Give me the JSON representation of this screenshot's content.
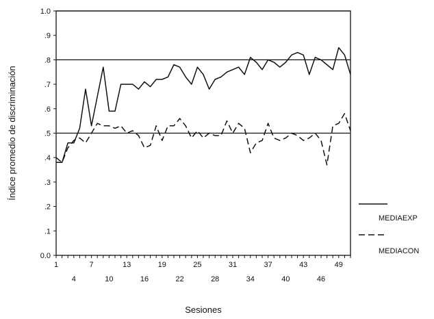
{
  "chart_data": {
    "type": "line",
    "title": "",
    "xlabel": "Sesiones",
    "ylabel": "Índice promedio de discriminación",
    "ylim": [
      0,
      1.0
    ],
    "xlim": [
      1,
      51
    ],
    "y_ticks": [
      "0.0",
      ".1",
      ".2",
      ".3",
      ".4",
      ".5",
      ".6",
      ".7",
      ".8",
      ".9",
      "1.0"
    ],
    "x_ticks_row1": [
      "1",
      "7",
      "13",
      "19",
      "25",
      "31",
      "37",
      "43",
      "49"
    ],
    "x_ticks_row2": [
      "4",
      "10",
      "16",
      "22",
      "28",
      "34",
      "40",
      "46"
    ],
    "reference_lines": [
      0.5,
      0.8,
      1.0
    ],
    "legend_position": "right",
    "series": [
      {
        "name": "MEDIAEXP",
        "style": "solid",
        "x": [
          1,
          2,
          3,
          4,
          5,
          6,
          7,
          8,
          9,
          10,
          11,
          12,
          13,
          14,
          15,
          16,
          17,
          18,
          19,
          20,
          21,
          22,
          23,
          24,
          25,
          26,
          27,
          28,
          29,
          30,
          31,
          32,
          33,
          34,
          35,
          36,
          37,
          38,
          39,
          40,
          41,
          42,
          43,
          44,
          45,
          46,
          47,
          48,
          49,
          50,
          51
        ],
        "values": [
          0.38,
          0.38,
          0.46,
          0.46,
          0.52,
          0.68,
          0.53,
          0.65,
          0.77,
          0.59,
          0.59,
          0.7,
          0.7,
          0.7,
          0.68,
          0.71,
          0.69,
          0.72,
          0.72,
          0.73,
          0.78,
          0.77,
          0.73,
          0.7,
          0.77,
          0.74,
          0.68,
          0.72,
          0.73,
          0.75,
          0.76,
          0.77,
          0.74,
          0.81,
          0.79,
          0.76,
          0.8,
          0.79,
          0.77,
          0.79,
          0.82,
          0.83,
          0.82,
          0.74,
          0.81,
          0.8,
          0.78,
          0.76,
          0.85,
          0.82,
          0.74
        ]
      },
      {
        "name": "MEDIACON",
        "style": "dashed",
        "x": [
          1,
          2,
          3,
          4,
          5,
          6,
          7,
          8,
          9,
          10,
          11,
          12,
          13,
          14,
          15,
          16,
          17,
          18,
          19,
          20,
          21,
          22,
          23,
          24,
          25,
          26,
          27,
          28,
          29,
          30,
          31,
          32,
          33,
          34,
          35,
          36,
          37,
          38,
          39,
          40,
          41,
          42,
          43,
          44,
          45,
          46,
          47,
          48,
          49,
          50,
          51
        ],
        "values": [
          0.4,
          0.38,
          0.44,
          0.47,
          0.48,
          0.46,
          0.5,
          0.54,
          0.53,
          0.53,
          0.52,
          0.53,
          0.5,
          0.51,
          0.49,
          0.44,
          0.45,
          0.53,
          0.47,
          0.53,
          0.53,
          0.56,
          0.53,
          0.48,
          0.51,
          0.48,
          0.5,
          0.49,
          0.49,
          0.55,
          0.5,
          0.54,
          0.52,
          0.42,
          0.46,
          0.47,
          0.54,
          0.48,
          0.47,
          0.48,
          0.5,
          0.49,
          0.47,
          0.48,
          0.5,
          0.47,
          0.37,
          0.53,
          0.54,
          0.58,
          0.51
        ]
      }
    ]
  }
}
